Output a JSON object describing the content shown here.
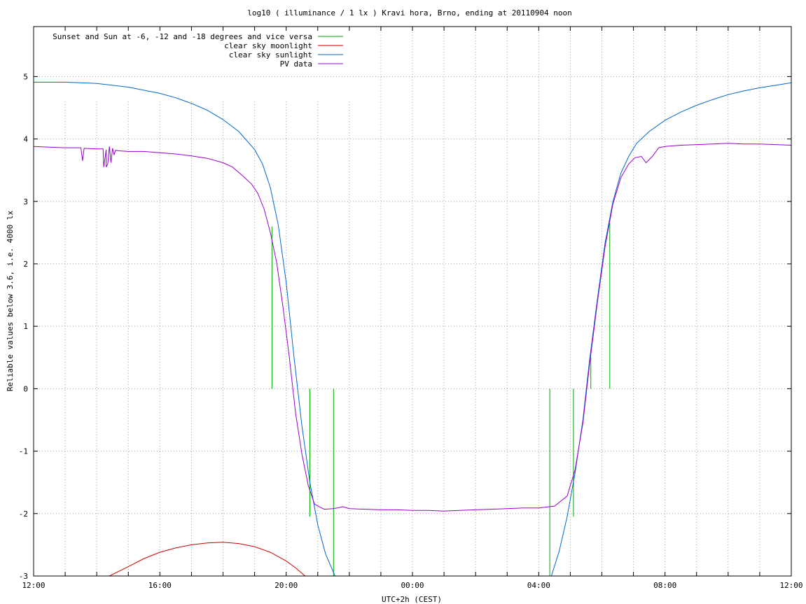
{
  "chart_data": {
    "type": "line",
    "title": "log10 ( illuminance / 1 lx ) Kravi hora, Brno, ending at 20110904 noon",
    "xlabel": "UTC+2h (CEST)",
    "ylabel": "Reliable values below 3.6, i.e. 4000 lx",
    "x_unit": "hours since 12:00 (UTC+2h)",
    "xlim": [
      0,
      24
    ],
    "ylim": [
      -3,
      5.8
    ],
    "x_ticks": [
      {
        "value": 0,
        "label": "12:00"
      },
      {
        "value": 4,
        "label": "16:00"
      },
      {
        "value": 8,
        "label": "20:00"
      },
      {
        "value": 12,
        "label": "00:00"
      },
      {
        "value": 16,
        "label": "04:00"
      },
      {
        "value": 20,
        "label": "08:00"
      },
      {
        "value": 24,
        "label": "12:00"
      }
    ],
    "y_ticks": [
      {
        "value": -3,
        "label": "-3"
      },
      {
        "value": -2,
        "label": "-2"
      },
      {
        "value": -1,
        "label": "-1"
      },
      {
        "value": 0,
        "label": "0"
      },
      {
        "value": 1,
        "label": "1"
      },
      {
        "value": 2,
        "label": "2"
      },
      {
        "value": 3,
        "label": "3"
      },
      {
        "value": 4,
        "label": "4"
      },
      {
        "value": 5,
        "label": "5"
      }
    ],
    "grid": true,
    "legend_position": "top-left",
    "series": [
      {
        "name": "Sunset and Sun at -6, -12 and -18 degrees and vice versa",
        "style": "vertical-markers",
        "color": "#00aa00",
        "markers": [
          {
            "x": 7.55,
            "y0": 0,
            "y1": 2.6
          },
          {
            "x": 8.75,
            "y0": -2.05,
            "y1": 0
          },
          {
            "x": 9.5,
            "y0": -3,
            "y1": 0
          },
          {
            "x": 16.35,
            "y0": -3,
            "y1": 0
          },
          {
            "x": 17.1,
            "y0": -2.05,
            "y1": 0
          },
          {
            "x": 17.65,
            "y0": 0,
            "y1": 0.5
          },
          {
            "x": 18.25,
            "y0": 0,
            "y1": 2.65
          }
        ]
      },
      {
        "name": "clear sky moonlight",
        "color": "#cc0000",
        "x": [
          2.4,
          3.0,
          3.5,
          4.0,
          4.5,
          5.0,
          5.5,
          6.0,
          6.5,
          7.0,
          7.5,
          8.0,
          8.3,
          8.6
        ],
        "y": [
          -3.0,
          -2.85,
          -2.72,
          -2.62,
          -2.55,
          -2.5,
          -2.47,
          -2.46,
          -2.48,
          -2.53,
          -2.62,
          -2.76,
          -2.87,
          -3.0
        ]
      },
      {
        "name": "clear sky sunlight",
        "color": "#0066cc",
        "x": [
          0,
          1,
          2,
          3,
          4,
          4.5,
          5,
          5.5,
          6,
          6.5,
          7,
          7.25,
          7.5,
          7.75,
          8,
          8.25,
          8.5,
          8.75,
          9,
          9.25,
          9.55,
          16.4,
          16.65,
          16.9,
          17.15,
          17.4,
          17.6,
          17.85,
          18.1,
          18.35,
          18.6,
          18.85,
          19.1,
          19.5,
          20,
          20.5,
          21,
          21.5,
          22,
          22.5,
          23,
          23.5,
          24
        ],
        "y": [
          4.91,
          4.91,
          4.89,
          4.83,
          4.73,
          4.66,
          4.57,
          4.46,
          4.31,
          4.12,
          3.83,
          3.6,
          3.22,
          2.62,
          1.7,
          0.5,
          -0.6,
          -1.5,
          -2.18,
          -2.65,
          -3.0,
          -3.0,
          -2.6,
          -2.05,
          -1.35,
          -0.5,
          0.42,
          1.4,
          2.33,
          3.0,
          3.45,
          3.72,
          3.93,
          4.12,
          4.3,
          4.43,
          4.54,
          4.63,
          4.71,
          4.77,
          4.82,
          4.86,
          4.9
        ]
      },
      {
        "name": "PV data",
        "color": "#9900cc",
        "x": [
          0,
          0.5,
          1,
          1.5,
          1.55,
          1.6,
          2,
          2.2,
          2.22,
          2.3,
          2.3,
          2.35,
          2.4,
          2.45,
          2.5,
          2.55,
          2.6,
          2.7,
          3,
          3.5,
          4,
          4.5,
          5,
          5.5,
          6,
          6.3,
          6.6,
          6.9,
          7.1,
          7.3,
          7.5,
          7.7,
          7.9,
          8.1,
          8.3,
          8.5,
          8.7,
          8.9,
          9.2,
          9.5,
          9.8,
          10,
          10.5,
          11,
          11.5,
          12,
          12.5,
          13,
          13.5,
          14,
          14.5,
          15,
          15.5,
          16,
          16.5,
          16.9,
          17.15,
          17.4,
          17.6,
          17.85,
          18.1,
          18.35,
          18.6,
          18.85,
          19.05,
          19.25,
          19.4,
          19.6,
          19.8,
          20,
          20.5,
          21,
          21.5,
          22,
          22.5,
          23,
          23.5,
          24
        ],
        "y": [
          3.88,
          3.87,
          3.86,
          3.86,
          3.65,
          3.85,
          3.84,
          3.84,
          3.55,
          3.83,
          3.55,
          3.6,
          3.88,
          3.62,
          3.85,
          3.75,
          3.82,
          3.81,
          3.8,
          3.8,
          3.78,
          3.76,
          3.73,
          3.69,
          3.62,
          3.55,
          3.42,
          3.28,
          3.13,
          2.88,
          2.5,
          2.02,
          1.3,
          0.5,
          -0.4,
          -1.05,
          -1.55,
          -1.85,
          -1.93,
          -1.92,
          -1.89,
          -1.92,
          -1.93,
          -1.94,
          -1.94,
          -1.95,
          -1.95,
          -1.96,
          -1.95,
          -1.94,
          -1.93,
          -1.92,
          -1.91,
          -1.91,
          -1.88,
          -1.72,
          -1.3,
          -0.55,
          0.35,
          1.35,
          2.27,
          2.96,
          3.38,
          3.6,
          3.7,
          3.72,
          3.62,
          3.72,
          3.86,
          3.88,
          3.9,
          3.91,
          3.92,
          3.93,
          3.92,
          3.92,
          3.91,
          3.9
        ]
      }
    ]
  }
}
